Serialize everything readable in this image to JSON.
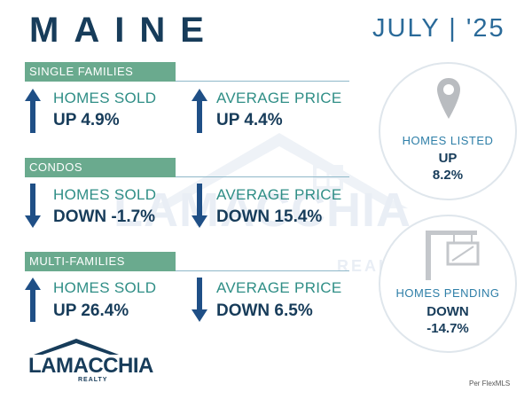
{
  "header": {
    "title": "MAINE",
    "date": "JULY | '25"
  },
  "sections": [
    {
      "label": "SINGLE FAMILIES",
      "homes_sold": {
        "label": "HOMES SOLD",
        "value": "UP 4.9%",
        "direction": "up"
      },
      "avg_price": {
        "label": "AVERAGE PRICE",
        "value": "UP 4.4%",
        "direction": "up"
      }
    },
    {
      "label": "CONDOS",
      "homes_sold": {
        "label": "HOMES SOLD",
        "value": "DOWN -1.7%",
        "direction": "down"
      },
      "avg_price": {
        "label": "AVERAGE PRICE",
        "value": "DOWN 15.4%",
        "direction": "down"
      }
    },
    {
      "label": "MULTI-FAMILIES",
      "homes_sold": {
        "label": "HOMES SOLD",
        "value": "UP 26.4%",
        "direction": "up"
      },
      "avg_price": {
        "label": "AVERAGE PRICE",
        "value": "DOWN 6.5%",
        "direction": "down"
      }
    }
  ],
  "listed": {
    "label": "HOMES LISTED",
    "direction": "UP",
    "pct": "8.2%",
    "icon": "map-pin-icon"
  },
  "pending": {
    "label": "HOMES PENDING",
    "direction": "DOWN",
    "pct": "-14.7%",
    "icon": "sale-sign-icon"
  },
  "logo": {
    "word": "LAMACCHIA",
    "sub": "REALTY"
  },
  "watermark": {
    "word": "LAMACCHIA",
    "sub": "REALTY"
  },
  "source": "Per FlexMLS",
  "colors": {
    "navy": "#173c5a",
    "teal": "#2f8e86",
    "green_bar": "#6aaa8e",
    "blue_text": "#2a6a99",
    "arrow": "#1f4f86"
  }
}
